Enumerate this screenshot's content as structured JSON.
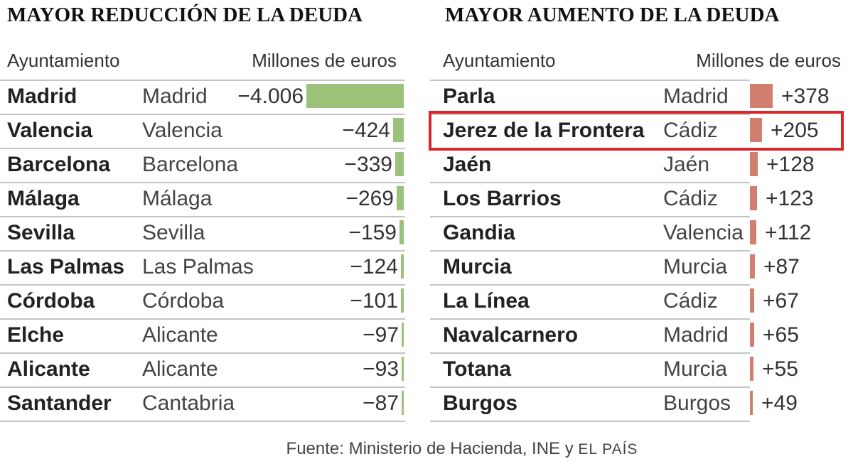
{
  "colors": {
    "decrease_bar": "#9cc27a",
    "increase_bar": "#d17f6f",
    "highlight": "#e0232b"
  },
  "chart_data": [
    {
      "type": "bar",
      "orientation": "horizontal",
      "title": "MAYOR REDUCCIÓN DE LA DEUDA",
      "col_header_name": "Ayuntamiento",
      "col_header_value": "Millones de euros",
      "categories": [
        "Madrid",
        "Valencia",
        "Barcelona",
        "Málaga",
        "Sevilla",
        "Las Palmas",
        "Córdoba",
        "Elche",
        "Alicante",
        "Santander"
      ],
      "provinces": [
        "Madrid",
        "Valencia",
        "Barcelona",
        "Málaga",
        "Sevilla",
        "Las Palmas",
        "Córdoba",
        "Alicante",
        "Alicante",
        "Cantabria"
      ],
      "value_labels": [
        "−4.006",
        "−424",
        "−339",
        "−269",
        "−159",
        "−124",
        "−101",
        "−97",
        "−93",
        "−87"
      ],
      "values": [
        -4006,
        -424,
        -339,
        -269,
        -159,
        -124,
        -101,
        -97,
        -93,
        -87
      ],
      "unit": "Millones de euros"
    },
    {
      "type": "bar",
      "orientation": "horizontal",
      "title": "MAYOR AUMENTO DE LA DEUDA",
      "col_header_name": "Ayuntamiento",
      "col_header_value": "Millones de euros",
      "categories": [
        "Parla",
        "Jerez de la Frontera",
        "Jaén",
        "Los Barrios",
        "Gandia",
        "Murcia",
        "La Línea",
        "Navalcarnero",
        "Totana",
        "Burgos"
      ],
      "provinces": [
        "Madrid",
        "Cádiz",
        "Jaén",
        "Cádiz",
        "Valencia",
        "Murcia",
        "Cádiz",
        "Madrid",
        "Murcia",
        "Burgos"
      ],
      "value_labels": [
        "+378",
        "+205",
        "+128",
        "+123",
        "+112",
        "+87",
        "+67",
        "+65",
        "+55",
        "+49"
      ],
      "values": [
        378,
        205,
        128,
        123,
        112,
        87,
        67,
        65,
        55,
        49
      ],
      "highlighted": "Jerez de la Frontera",
      "unit": "Millones de euros"
    }
  ],
  "source": {
    "text": "Fuente: Ministerio de Hacienda, INE y",
    "brand": "EL PAÍS"
  }
}
